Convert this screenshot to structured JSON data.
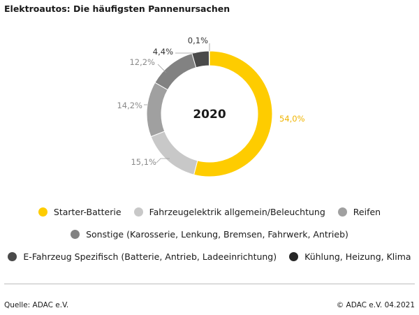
{
  "title": "Elektroautos: Die häufigsten Pannenursachen",
  "chart_data": {
    "type": "pie",
    "variant": "donut",
    "center_label": "2020",
    "categories": [
      "Starter-Batterie",
      "Fahrzeugelektrik allgemein/Beleuchtung",
      "Reifen",
      "Sonstige (Karosserie, Lenkung, Bremsen, Fahrwerk, Antrieb)",
      "E-Fahrzeug Spezifisch (Batterie, Antrieb, Ladeeinrichtung)",
      "Kühlung, Heizung, Klima"
    ],
    "values": [
      54.0,
      15.1,
      14.2,
      12.2,
      4.4,
      0.1
    ],
    "labels": [
      "54,0%",
      "15,1%",
      "14,2%",
      "12,2%",
      "4,4%",
      "0,1%"
    ],
    "colors": [
      "#fecc00",
      "#c8c8c8",
      "#a0a0a0",
      "#828282",
      "#4a4a4a",
      "#262626"
    ],
    "label_colors": [
      "#f0b400",
      "#8a8a8a",
      "#8a8a8a",
      "#8a8a8a",
      "#333333",
      "#333333"
    ],
    "legend_placement": "bottom"
  },
  "footer": {
    "source": "Quelle: ADAC e.V.",
    "copyright": "© ADAC e.V. 04.2021"
  }
}
